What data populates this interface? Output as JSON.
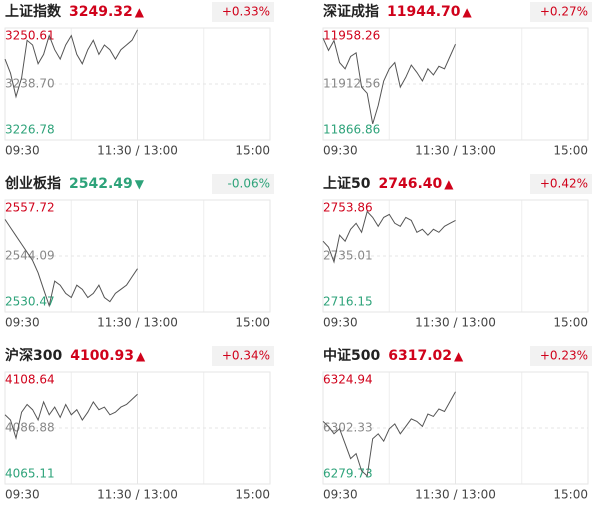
{
  "chart_data": [
    {
      "type": "line",
      "title": "上证指数",
      "price": {
        "value": 3249.32,
        "label": "3249.32"
      },
      "arrow": "▲",
      "change": {
        "value": 0.33,
        "label": "+0.33%"
      },
      "color": "#d0021b",
      "line_color": "#555555",
      "x": [
        0,
        5,
        10,
        15,
        20,
        25,
        30,
        35,
        40,
        45,
        50,
        55,
        60,
        65,
        70,
        75,
        80,
        85,
        90,
        95,
        100,
        105,
        110,
        115,
        120
      ],
      "values": [
        3244,
        3241,
        3236,
        3240,
        3248,
        3247,
        3243,
        3245,
        3249,
        3246,
        3244,
        3247,
        3249,
        3245,
        3243,
        3246,
        3248,
        3245,
        3247,
        3246,
        3244,
        3246,
        3247,
        3248,
        3250.2
      ],
      "xlim": [
        0,
        240
      ],
      "xticks": [
        {
          "value": 0,
          "label": "09:30"
        },
        {
          "value": 120,
          "label": "11:30 / 13:00"
        },
        {
          "value": 240,
          "label": "15:00"
        }
      ],
      "ylim": [
        3226.78,
        3250.61
      ],
      "yticks": [
        3250.61,
        {
          "value": 3238.7,
          "label": "3238.70"
        },
        3226.78
      ]
    },
    {
      "type": "line",
      "title": "深证成指",
      "price": {
        "value": 11944.7,
        "label": "11944.70"
      },
      "arrow": "▲",
      "change": {
        "value": 0.27,
        "label": "+0.27%"
      },
      "color": "#d0021b",
      "line_color": "#555555",
      "x": [
        0,
        5,
        10,
        15,
        20,
        25,
        30,
        35,
        40,
        45,
        50,
        55,
        60,
        65,
        70,
        75,
        80,
        85,
        90,
        95,
        100,
        105,
        110,
        115,
        120
      ],
      "values": [
        11950,
        11940,
        11948,
        11930,
        11925,
        11935,
        11938,
        11910,
        11905,
        11880,
        11895,
        11915,
        11925,
        11930,
        11910,
        11918,
        11928,
        11922,
        11915,
        11925,
        11920,
        11927,
        11925,
        11935,
        11945
      ],
      "xlim": [
        0,
        240
      ],
      "xticks": [
        {
          "value": 0,
          "label": "09:30"
        },
        {
          "value": 120,
          "label": "11:30 / 13:00"
        },
        {
          "value": 240,
          "label": "15:00"
        }
      ],
      "ylim": [
        11866.86,
        11958.26
      ],
      "yticks": [
        11958.26,
        11912.56,
        11866.86
      ]
    },
    {
      "type": "line",
      "title": "创业板指",
      "price": {
        "value": 2542.49,
        "label": "2542.49"
      },
      "arrow": "▼",
      "change": {
        "value": -0.06,
        "label": "-0.06%"
      },
      "color": "#2ea37a",
      "line_color": "#555555",
      "x": [
        0,
        5,
        10,
        15,
        20,
        25,
        30,
        35,
        40,
        45,
        50,
        55,
        60,
        65,
        70,
        75,
        80,
        85,
        90,
        95,
        100,
        105,
        110,
        115,
        120
      ],
      "values": [
        2553,
        2551,
        2549,
        2547,
        2545,
        2543,
        2540,
        2536,
        2532,
        2538,
        2537,
        2535,
        2534,
        2537,
        2536,
        2534,
        2535,
        2537,
        2534,
        2533,
        2535,
        2536,
        2537,
        2539,
        2541
      ],
      "xlim": [
        0,
        240
      ],
      "xticks": [
        {
          "value": 0,
          "label": "09:30"
        },
        {
          "value": 120,
          "label": "11:30 / 13:00"
        },
        {
          "value": 240,
          "label": "15:00"
        }
      ],
      "ylim": [
        2530.47,
        2557.72
      ],
      "yticks": [
        2557.72,
        2544.09,
        2530.47
      ]
    },
    {
      "type": "line",
      "title": "上证50",
      "price": {
        "value": 2746.4,
        "label": "2746.40"
      },
      "arrow": "▲",
      "change": {
        "value": 0.42,
        "label": "+0.42%"
      },
      "color": "#d0021b",
      "line_color": "#555555",
      "x": [
        0,
        5,
        10,
        15,
        20,
        25,
        30,
        35,
        40,
        45,
        50,
        55,
        60,
        65,
        70,
        75,
        80,
        85,
        90,
        95,
        100,
        105,
        110,
        115,
        120
      ],
      "values": [
        2740,
        2738,
        2733,
        2742,
        2740,
        2744,
        2746,
        2743,
        2750,
        2748,
        2745,
        2748,
        2749,
        2746,
        2745,
        2748,
        2747,
        2743,
        2744,
        2742,
        2744,
        2743,
        2745,
        2746,
        2747
      ],
      "xlim": [
        0,
        240
      ],
      "xticks": [
        {
          "value": 0,
          "label": "09:30"
        },
        {
          "value": 120,
          "label": "11:30 / 13:00"
        },
        {
          "value": 240,
          "label": "15:00"
        }
      ],
      "ylim": [
        2716.15,
        2753.86
      ],
      "yticks": [
        2753.86,
        2735.01,
        2716.15
      ]
    },
    {
      "type": "line",
      "title": "沪深300",
      "price": {
        "value": 4100.93,
        "label": "4100.93"
      },
      "arrow": "▲",
      "change": {
        "value": 0.34,
        "label": "+0.34%"
      },
      "color": "#d0021b",
      "line_color": "#555555",
      "x": [
        0,
        5,
        10,
        15,
        20,
        25,
        30,
        35,
        40,
        45,
        50,
        55,
        60,
        65,
        70,
        75,
        80,
        85,
        90,
        95,
        100,
        105,
        110,
        115,
        120
      ],
      "values": [
        4092,
        4090,
        4083,
        4093,
        4096,
        4094,
        4090,
        4097,
        4092,
        4095,
        4091,
        4096,
        4092,
        4094,
        4090,
        4093,
        4097,
        4094,
        4095,
        4092,
        4093,
        4095,
        4096,
        4098,
        4100
      ],
      "xlim": [
        0,
        240
      ],
      "xticks": [
        {
          "value": 0,
          "label": "09:30"
        },
        {
          "value": 120,
          "label": "11:30 / 13:00"
        },
        {
          "value": 240,
          "label": "15:00"
        }
      ],
      "ylim": [
        4065.11,
        4108.64
      ],
      "yticks": [
        4108.64,
        4086.88,
        4065.11
      ]
    },
    {
      "type": "line",
      "title": "中证500",
      "price": {
        "value": 6317.02,
        "label": "6317.02"
      },
      "arrow": "▲",
      "change": {
        "value": 0.23,
        "label": "+0.23%"
      },
      "color": "#d0021b",
      "line_color": "#555555",
      "x": [
        0,
        5,
        10,
        15,
        20,
        25,
        30,
        35,
        40,
        45,
        50,
        55,
        60,
        65,
        70,
        75,
        80,
        85,
        90,
        95,
        100,
        105,
        110,
        115,
        120
      ],
      "values": [
        6305,
        6303,
        6300,
        6302,
        6296,
        6290,
        6292,
        6285,
        6283,
        6298,
        6300,
        6297,
        6302,
        6304,
        6300,
        6303,
        6306,
        6305,
        6303,
        6308,
        6307,
        6310,
        6309,
        6313,
        6317
      ],
      "xlim": [
        0,
        240
      ],
      "xticks": [
        {
          "value": 0,
          "label": "09:30"
        },
        {
          "value": 120,
          "label": "11:30 / 13:00"
        },
        {
          "value": 240,
          "label": "15:00"
        }
      ],
      "ylim": [
        6279.73,
        6324.94
      ],
      "yticks": [
        6324.94,
        6302.33,
        6279.73
      ]
    }
  ]
}
